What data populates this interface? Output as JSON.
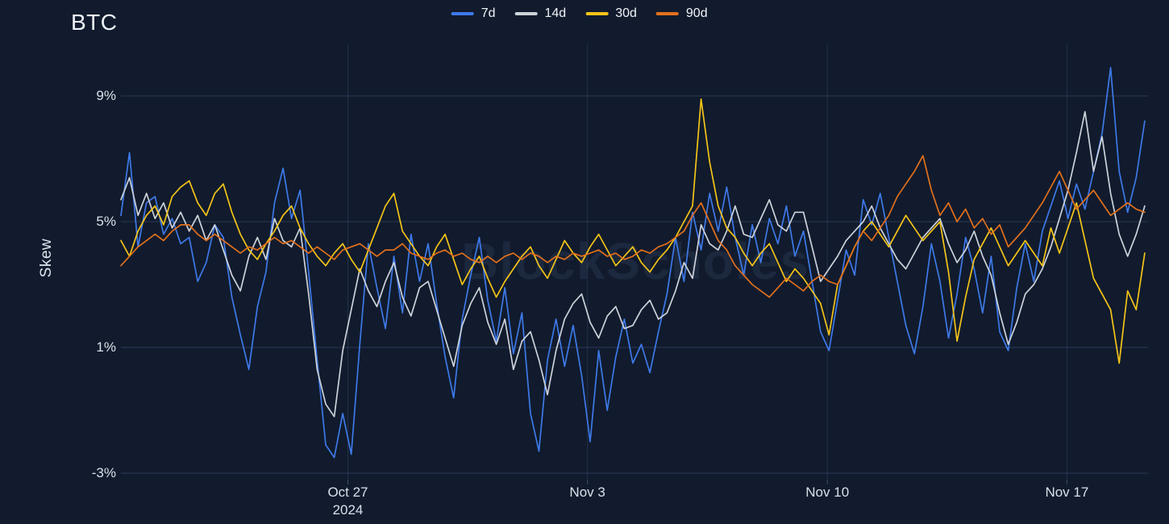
{
  "title": "BTC",
  "watermark": "BlockScholes",
  "y_axis": {
    "label": "Skew",
    "ticks": [
      {
        "label": "9%",
        "value": 9
      },
      {
        "label": "5%",
        "value": 5
      },
      {
        "label": "1%",
        "value": 1
      },
      {
        "label": "-3%",
        "value": -3
      }
    ]
  },
  "x_axis": {
    "ticks": [
      {
        "label": "Oct 27",
        "sublabel": "2024",
        "day": 6.65
      },
      {
        "label": "Nov 3",
        "sublabel": "",
        "day": 13.67
      },
      {
        "label": "Nov 10",
        "sublabel": "",
        "day": 20.7
      },
      {
        "label": "Nov 17",
        "sublabel": "",
        "day": 27.72
      }
    ]
  },
  "legend": [
    {
      "label": "7d",
      "color": "#3e79e8"
    },
    {
      "label": "14d",
      "color": "#cdd2da"
    },
    {
      "label": "30d",
      "color": "#f4c418"
    },
    {
      "label": "90d",
      "color": "#e2701c"
    }
  ],
  "colors": {
    "background": "#111b2d",
    "grid": "rgba(110,140,195,0.25)",
    "text": "#e9eef6"
  },
  "chart_data": {
    "type": "line",
    "title": "BTC",
    "ylabel": "Skew",
    "x_unit": "days (0 = approx Oct 20 2024, chart spans to approx Nov 19 2024)",
    "x_step_days": 0.25,
    "xlim_days": [
      0,
      30.1
    ],
    "ylim": [
      -3.5,
      10.5
    ],
    "y_tick_values": [
      9,
      5,
      1,
      -3
    ],
    "grid": true,
    "legend_position": "top-center",
    "series": [
      {
        "name": "7d",
        "color": "#3e79e8",
        "values": [
          5.2,
          7.2,
          4.2,
          5.6,
          5.8,
          4.6,
          5.1,
          4.3,
          4.5,
          3.1,
          3.7,
          4.9,
          4.5,
          2.6,
          1.4,
          0.3,
          2.3,
          3.4,
          5.6,
          6.7,
          5.1,
          6.0,
          3.4,
          0.6,
          -2.1,
          -2.5,
          -1.1,
          -2.4,
          1.1,
          4.3,
          2.9,
          1.6,
          3.9,
          2.1,
          4.6,
          3.1,
          4.3,
          2.4,
          0.7,
          -0.6,
          1.9,
          3.3,
          4.5,
          2.5,
          1.2,
          2.9,
          0.8,
          2.1,
          -1.1,
          -2.3,
          0.6,
          1.9,
          0.4,
          1.7,
          0.1,
          -2.0,
          0.9,
          -1.0,
          0.7,
          1.9,
          0.5,
          1.1,
          0.2,
          1.5,
          2.7,
          4.5,
          3.1,
          5.3,
          4.1,
          5.9,
          4.7,
          6.1,
          4.5,
          3.3,
          4.9,
          3.7,
          5.1,
          4.3,
          5.5,
          3.9,
          4.7,
          3.1,
          1.5,
          0.9,
          2.5,
          4.1,
          3.3,
          5.7,
          4.9,
          5.9,
          4.5,
          3.1,
          1.7,
          0.8,
          2.3,
          4.3,
          3.1,
          1.3,
          2.7,
          4.5,
          3.5,
          2.1,
          3.9,
          1.5,
          0.9,
          2.9,
          4.3,
          3.1,
          4.7,
          5.5,
          6.3,
          5.1,
          6.2,
          5.4,
          6.6,
          7.8,
          9.9,
          6.6,
          5.3,
          6.4,
          8.2
        ]
      },
      {
        "name": "14d",
        "color": "#cdd2da",
        "values": [
          5.7,
          6.4,
          5.2,
          5.9,
          5.1,
          5.6,
          4.8,
          5.3,
          4.7,
          5.2,
          4.4,
          4.9,
          4.1,
          3.3,
          2.8,
          3.9,
          4.5,
          3.8,
          5.1,
          4.4,
          4.2,
          4.8,
          2.7,
          0.3,
          -0.8,
          -1.2,
          0.9,
          2.2,
          3.5,
          2.8,
          2.3,
          3.1,
          3.7,
          2.6,
          2.0,
          2.9,
          3.1,
          2.2,
          1.3,
          0.4,
          1.7,
          2.4,
          2.9,
          1.8,
          1.1,
          1.9,
          0.3,
          1.2,
          1.5,
          0.6,
          -0.5,
          0.9,
          1.9,
          2.4,
          2.7,
          1.8,
          1.3,
          2.0,
          2.3,
          1.6,
          1.7,
          2.2,
          2.5,
          1.9,
          2.1,
          2.8,
          3.7,
          3.2,
          4.9,
          4.3,
          4.1,
          4.7,
          5.5,
          4.6,
          4.5,
          5.1,
          5.7,
          4.9,
          4.7,
          5.3,
          5.3,
          4.2,
          3.1,
          3.5,
          3.9,
          4.4,
          4.7,
          5.0,
          5.5,
          4.8,
          4.3,
          3.8,
          3.5,
          4.0,
          4.5,
          4.8,
          5.1,
          4.3,
          3.7,
          4.1,
          4.7,
          3.9,
          3.3,
          2.1,
          1.1,
          1.8,
          2.7,
          3.0,
          3.5,
          4.2,
          5.1,
          6.0,
          7.2,
          8.5,
          6.6,
          7.7,
          5.9,
          4.6,
          3.9,
          4.6,
          5.5
        ]
      },
      {
        "name": "30d",
        "color": "#f4c418",
        "values": [
          4.4,
          3.9,
          4.7,
          5.2,
          5.5,
          4.9,
          5.8,
          6.1,
          6.3,
          5.6,
          5.2,
          5.9,
          6.2,
          5.3,
          4.6,
          4.1,
          3.8,
          4.3,
          4.7,
          5.2,
          5.5,
          4.8,
          4.3,
          3.9,
          3.6,
          4.0,
          4.3,
          3.8,
          3.4,
          4.1,
          4.8,
          5.5,
          5.9,
          4.7,
          4.3,
          3.9,
          3.6,
          4.2,
          4.6,
          3.8,
          3.0,
          3.5,
          3.9,
          3.2,
          2.6,
          3.1,
          3.5,
          3.9,
          4.2,
          3.6,
          3.2,
          3.8,
          4.4,
          4.0,
          3.7,
          4.2,
          4.6,
          4.1,
          3.6,
          3.9,
          4.2,
          3.7,
          3.4,
          3.8,
          4.1,
          4.5,
          5.0,
          5.5,
          8.9,
          6.9,
          5.5,
          4.8,
          4.5,
          4.0,
          3.6,
          4.0,
          4.3,
          3.7,
          3.1,
          3.5,
          3.2,
          2.8,
          2.4,
          1.4,
          3.0,
          3.6,
          4.2,
          4.7,
          5.0,
          4.6,
          4.2,
          4.7,
          5.2,
          4.8,
          4.4,
          4.7,
          5.0,
          3.4,
          1.2,
          2.6,
          3.8,
          4.3,
          4.8,
          4.2,
          3.6,
          4.0,
          4.4,
          4.0,
          3.6,
          4.8,
          4.0,
          4.8,
          5.6,
          4.4,
          3.2,
          2.7,
          2.2,
          0.5,
          2.8,
          2.2,
          4.0
        ]
      },
      {
        "name": "90d",
        "color": "#e2701c",
        "values": [
          3.6,
          3.9,
          4.2,
          4.4,
          4.6,
          4.4,
          4.7,
          4.9,
          4.9,
          4.6,
          4.4,
          4.6,
          4.4,
          4.2,
          4.0,
          4.2,
          4.1,
          4.3,
          4.5,
          4.3,
          4.4,
          4.2,
          4.0,
          4.2,
          4.0,
          3.8,
          4.1,
          4.2,
          4.3,
          4.1,
          3.9,
          4.1,
          4.1,
          4.3,
          4.0,
          3.9,
          3.8,
          4.0,
          4.1,
          3.9,
          4.0,
          3.8,
          3.7,
          3.9,
          3.7,
          3.9,
          4.0,
          3.8,
          4.0,
          3.9,
          3.7,
          3.9,
          3.8,
          4.0,
          3.9,
          4.0,
          4.1,
          3.9,
          4.0,
          3.8,
          3.9,
          4.1,
          4.0,
          4.2,
          4.3,
          4.5,
          4.7,
          5.2,
          5.6,
          5.0,
          4.4,
          4.1,
          3.6,
          3.3,
          3.0,
          2.8,
          2.6,
          2.9,
          3.2,
          3.0,
          2.8,
          3.1,
          3.3,
          3.1,
          3.0,
          3.6,
          4.2,
          4.7,
          4.4,
          4.8,
          5.2,
          5.8,
          6.2,
          6.6,
          7.1,
          6.0,
          5.2,
          5.6,
          5.0,
          5.4,
          4.8,
          5.1,
          4.6,
          4.9,
          4.2,
          4.5,
          4.8,
          5.2,
          5.6,
          6.1,
          6.6,
          6.0,
          5.4,
          5.7,
          6.0,
          5.6,
          5.2,
          5.4,
          5.6,
          5.4,
          5.3
        ]
      }
    ]
  }
}
